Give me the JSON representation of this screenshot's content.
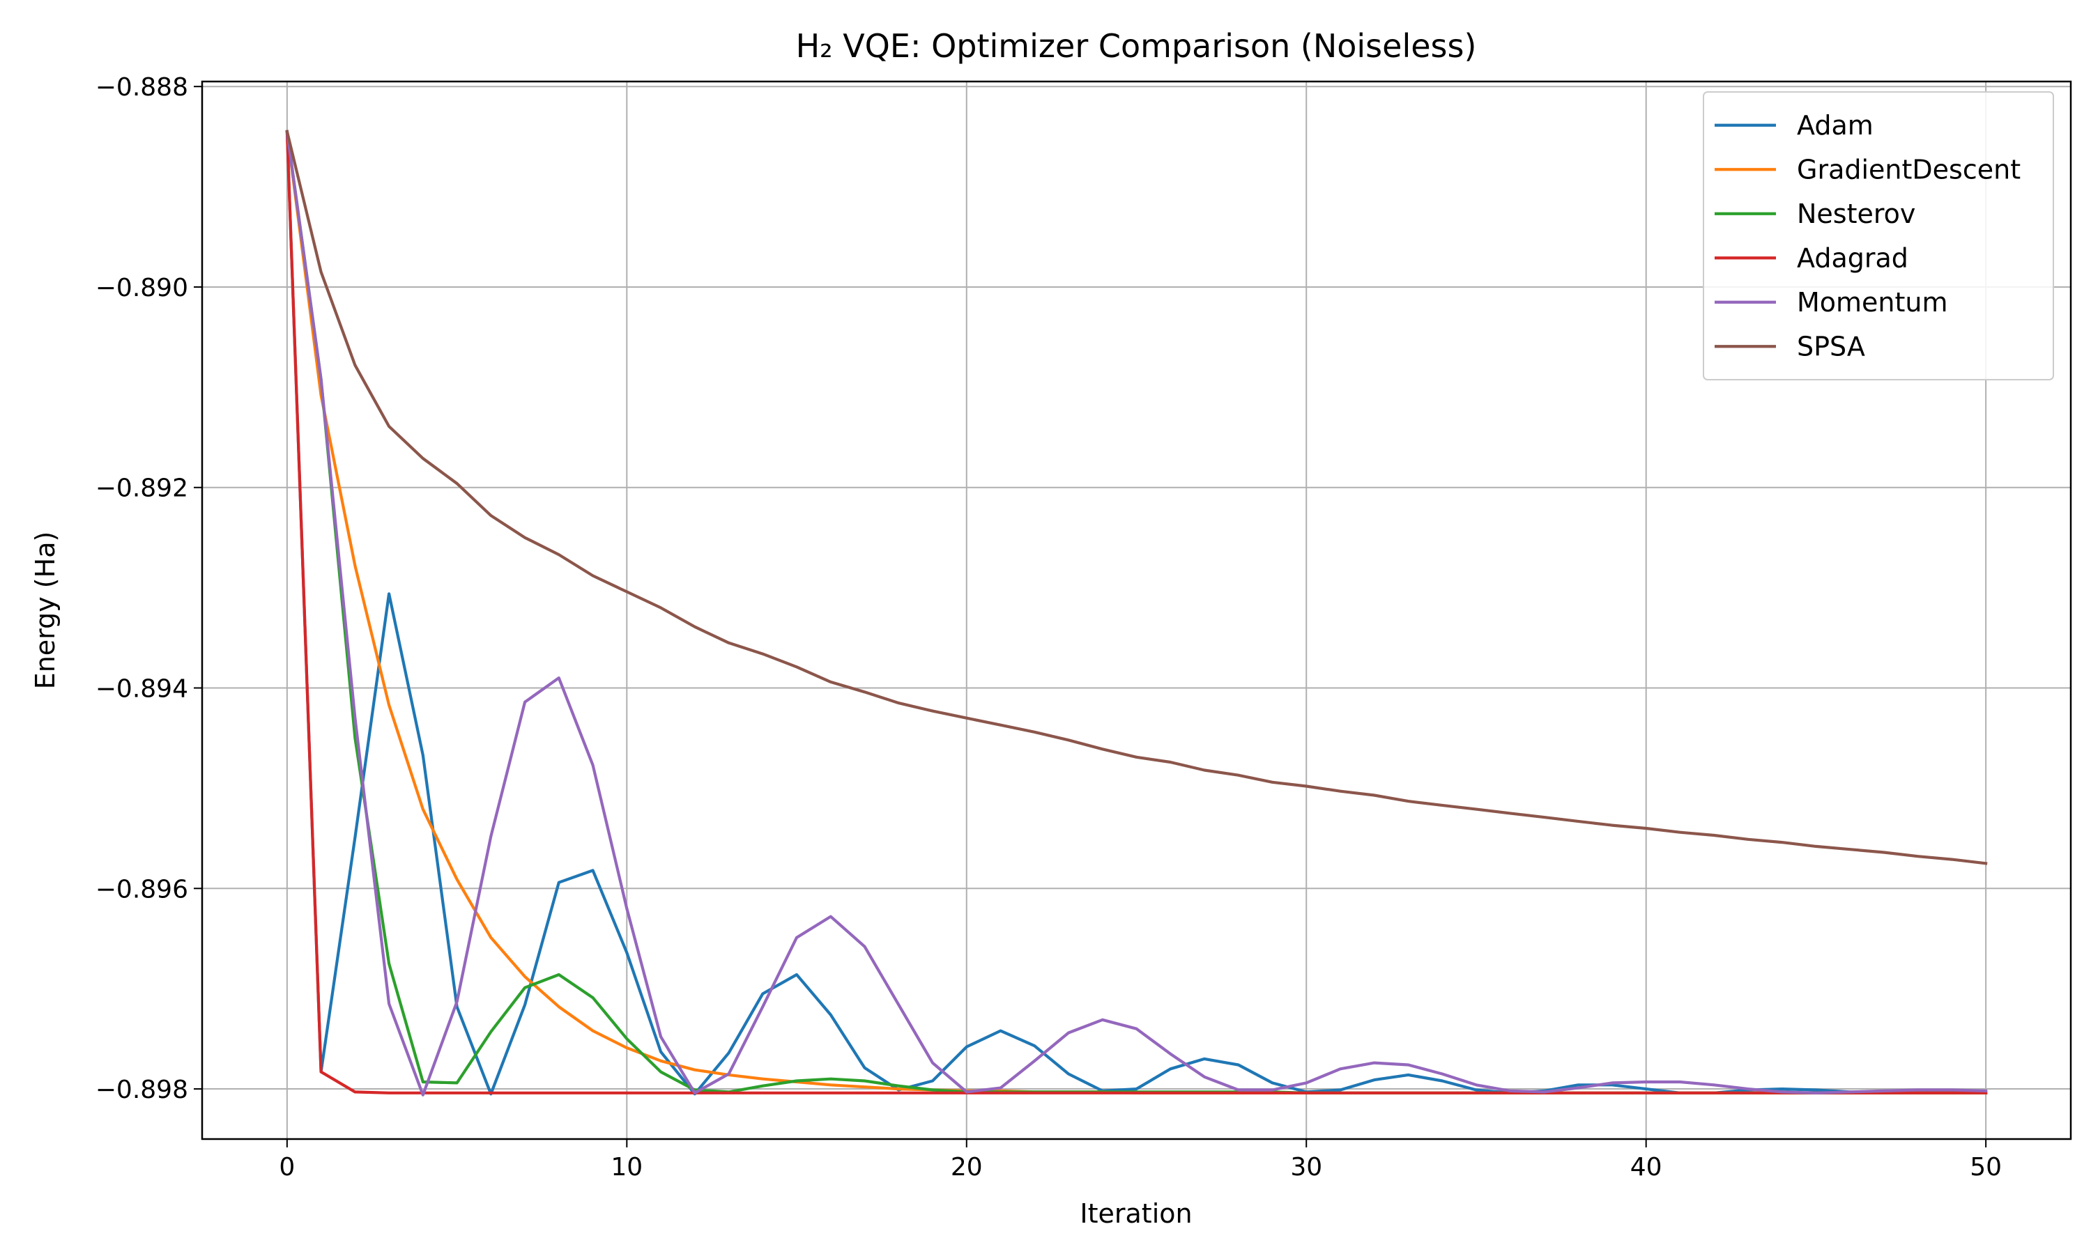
{
  "chart_data": {
    "type": "line",
    "title": "H₂ VQE: Optimizer Comparison (Noiseless)",
    "xlabel": "Iteration",
    "ylabel": "Energy (Ha)",
    "xlim": [
      -2.5,
      52.5
    ],
    "ylim": [
      -0.8985,
      -0.88795
    ],
    "xticks": [
      0,
      10,
      20,
      30,
      40,
      50
    ],
    "yticks": [
      -0.888,
      -0.89,
      -0.892,
      -0.894,
      -0.896,
      -0.898
    ],
    "ytick_labels": [
      "−0.888",
      "−0.890",
      "−0.892",
      "−0.894",
      "−0.896",
      "−0.898"
    ],
    "grid": true,
    "legend_position": "top-right",
    "x": [
      0,
      1,
      2,
      3,
      4,
      5,
      6,
      7,
      8,
      9,
      10,
      11,
      12,
      13,
      14,
      15,
      16,
      17,
      18,
      19,
      20,
      21,
      22,
      23,
      24,
      25,
      26,
      27,
      28,
      29,
      30,
      31,
      32,
      33,
      34,
      35,
      36,
      37,
      38,
      39,
      40,
      41,
      42,
      43,
      44,
      45,
      46,
      47,
      48,
      49,
      50
    ],
    "series": [
      {
        "name": "Adam",
        "color": "#1f77b4",
        "values": [
          -0.88845,
          -0.89783,
          -0.89549,
          -0.89306,
          -0.89467,
          -0.89718,
          -0.89805,
          -0.89716,
          -0.89594,
          -0.89582,
          -0.89664,
          -0.89763,
          -0.89805,
          -0.89764,
          -0.89705,
          -0.89686,
          -0.89726,
          -0.89779,
          -0.89801,
          -0.89792,
          -0.89758,
          -0.89742,
          -0.89757,
          -0.89785,
          -0.89802,
          -0.898,
          -0.8978,
          -0.8977,
          -0.89776,
          -0.89794,
          -0.89803,
          -0.89801,
          -0.89791,
          -0.89786,
          -0.89792,
          -0.89801,
          -0.89804,
          -0.89802,
          -0.89796,
          -0.89796,
          -0.898,
          -0.89804,
          -0.89804,
          -0.89801,
          -0.898,
          -0.89801,
          -0.89803,
          -0.89804,
          -0.89804,
          -0.89803,
          -0.89803
        ]
      },
      {
        "name": "GradientDescent",
        "color": "#ff7f0e",
        "values": [
          -0.88845,
          -0.89108,
          -0.89278,
          -0.89417,
          -0.89521,
          -0.89591,
          -0.89649,
          -0.89688,
          -0.89718,
          -0.89742,
          -0.89759,
          -0.89772,
          -0.89781,
          -0.89786,
          -0.8979,
          -0.89793,
          -0.89796,
          -0.89798,
          -0.898,
          -0.89801,
          -0.89802,
          -0.89802,
          -0.89803,
          -0.89803,
          -0.89803,
          -0.89804,
          -0.89804,
          -0.89804,
          -0.89804,
          -0.89804,
          -0.89804,
          -0.89804,
          -0.89804,
          -0.89804,
          -0.89804,
          -0.89804,
          -0.89804,
          -0.89804,
          -0.89804,
          -0.89804,
          -0.89804,
          -0.89804,
          -0.89804,
          -0.89804,
          -0.89804,
          -0.89804,
          -0.89804,
          -0.89804,
          -0.89804,
          -0.89804,
          -0.89804
        ]
      },
      {
        "name": "Nesterov",
        "color": "#2ca02c",
        "values": [
          -0.88845,
          -0.89092,
          -0.8945,
          -0.89675,
          -0.89793,
          -0.89794,
          -0.89743,
          -0.89699,
          -0.89686,
          -0.89709,
          -0.8975,
          -0.89783,
          -0.89801,
          -0.89803,
          -0.89797,
          -0.89792,
          -0.8979,
          -0.89792,
          -0.89797,
          -0.89801,
          -0.89803,
          -0.89803,
          -0.89803,
          -0.89803,
          -0.89803,
          -0.89803,
          -0.89803,
          -0.89803,
          -0.89803,
          -0.89803,
          -0.89804,
          -0.89804,
          -0.89804,
          -0.89804,
          -0.89804,
          -0.89804,
          -0.89804,
          -0.89804,
          -0.89804,
          -0.89804,
          -0.89804,
          -0.89804,
          -0.89804,
          -0.89804,
          -0.89804,
          -0.89804,
          -0.89804,
          -0.89804,
          -0.89804,
          -0.89804,
          -0.89804
        ]
      },
      {
        "name": "Adagrad",
        "color": "#d62728",
        "values": [
          -0.88845,
          -0.89783,
          -0.89803,
          -0.89804,
          -0.89804,
          -0.89804,
          -0.89804,
          -0.89804,
          -0.89804,
          -0.89804,
          -0.89804,
          -0.89804,
          -0.89804,
          -0.89804,
          -0.89804,
          -0.89804,
          -0.89804,
          -0.89804,
          -0.89804,
          -0.89804,
          -0.89804,
          -0.89804,
          -0.89804,
          -0.89804,
          -0.89804,
          -0.89804,
          -0.89804,
          -0.89804,
          -0.89804,
          -0.89804,
          -0.89804,
          -0.89804,
          -0.89804,
          -0.89804,
          -0.89804,
          -0.89804,
          -0.89804,
          -0.89804,
          -0.89804,
          -0.89804,
          -0.89804,
          -0.89804,
          -0.89804,
          -0.89804,
          -0.89804,
          -0.89804,
          -0.89804,
          -0.89804,
          -0.89804,
          -0.89804,
          -0.89804
        ]
      },
      {
        "name": "Momentum",
        "color": "#9467bd",
        "values": [
          -0.88845,
          -0.89092,
          -0.8943,
          -0.89715,
          -0.89806,
          -0.89713,
          -0.89548,
          -0.89414,
          -0.8939,
          -0.89477,
          -0.8962,
          -0.89748,
          -0.89804,
          -0.89785,
          -0.89718,
          -0.89649,
          -0.89628,
          -0.89658,
          -0.89716,
          -0.89774,
          -0.89803,
          -0.89799,
          -0.89772,
          -0.89744,
          -0.89731,
          -0.8974,
          -0.89765,
          -0.89788,
          -0.89801,
          -0.89801,
          -0.89794,
          -0.8978,
          -0.89774,
          -0.89776,
          -0.89785,
          -0.89796,
          -0.89802,
          -0.89803,
          -0.89799,
          -0.89794,
          -0.89793,
          -0.89793,
          -0.89796,
          -0.898,
          -0.89803,
          -0.89804,
          -0.89803,
          -0.89802,
          -0.89801,
          -0.89801,
          -0.89802
        ]
      },
      {
        "name": "SPSA",
        "color": "#8c564b",
        "values": [
          -0.88845,
          -0.88985,
          -0.89078,
          -0.89139,
          -0.89171,
          -0.89196,
          -0.89228,
          -0.8925,
          -0.89267,
          -0.89288,
          -0.89304,
          -0.8932,
          -0.89339,
          -0.89355,
          -0.89366,
          -0.89379,
          -0.89394,
          -0.89404,
          -0.89415,
          -0.89423,
          -0.8943,
          -0.89437,
          -0.89444,
          -0.89452,
          -0.89461,
          -0.89469,
          -0.89474,
          -0.89482,
          -0.89487,
          -0.89494,
          -0.89498,
          -0.89503,
          -0.89507,
          -0.89513,
          -0.89517,
          -0.89521,
          -0.89525,
          -0.89529,
          -0.89533,
          -0.89537,
          -0.8954,
          -0.89544,
          -0.89547,
          -0.89551,
          -0.89554,
          -0.89558,
          -0.89561,
          -0.89564,
          -0.89568,
          -0.89571,
          -0.89575
        ]
      }
    ]
  }
}
